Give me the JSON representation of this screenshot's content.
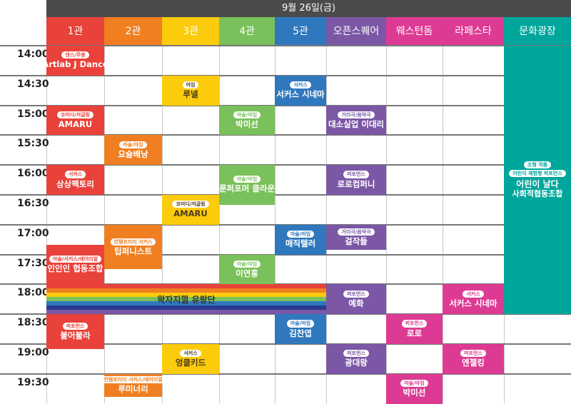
{
  "header": {
    "date": "9월 26일(금)"
  },
  "venues": [
    {
      "label": "1관",
      "color": "#e8423a"
    },
    {
      "label": "2관",
      "color": "#f07f22"
    },
    {
      "label": "3관",
      "color": "#fccb0b"
    },
    {
      "label": "4관",
      "color": "#7ac05b"
    },
    {
      "label": "5관",
      "color": "#2f78be"
    },
    {
      "label": "오픈스퀘어",
      "color": "#7b57a6"
    },
    {
      "label": "웨스턴돔",
      "color": "#dd3b93"
    },
    {
      "label": "라페스타",
      "color": "#dd3b93"
    },
    {
      "label": "문화광장",
      "color": "#00a69c"
    }
  ],
  "times": [
    "14:00",
    "14:30",
    "15:00",
    "15:30",
    "16:00",
    "16:30",
    "17:00",
    "17:30",
    "18:00",
    "18:30",
    "19:00",
    "19:30"
  ],
  "events": [
    {
      "venue": 0,
      "start": "14:00",
      "end": "14:30",
      "tag": "댄스/무용",
      "name": "Artlab J Dance"
    },
    {
      "venue": 2,
      "start": "14:30",
      "end": "15:00",
      "tag": "마임",
      "name": "루넬"
    },
    {
      "venue": 4,
      "start": "14:30",
      "end": "15:00",
      "tag": "서커스",
      "name": "서커스 시네마"
    },
    {
      "venue": 0,
      "start": "15:00",
      "end": "15:30",
      "tag": "코미디/저글링",
      "name": "AMARU"
    },
    {
      "venue": 3,
      "start": "15:00",
      "end": "15:30",
      "tag": "마술/마임",
      "name": "박미선"
    },
    {
      "venue": 5,
      "start": "15:00",
      "end": "15:30",
      "tag": "거리극/음악극",
      "name": "대소실업 이대리"
    },
    {
      "venue": 1,
      "start": "15:30",
      "end": "16:00",
      "tag": "마술/마임",
      "name": "요술배낭"
    },
    {
      "venue": 0,
      "start": "16:00",
      "end": "16:30",
      "tag": "서커스",
      "name": "상상팩토리"
    },
    {
      "venue": 3,
      "start": "16:00",
      "end": "16:40",
      "tag": "마술/마임",
      "name": "벌룬퍼포머 클라운진"
    },
    {
      "venue": 5,
      "start": "16:00",
      "end": "16:30",
      "tag": "퍼포먼스",
      "name": "로로컴퍼니"
    },
    {
      "venue": 2,
      "start": "16:30",
      "end": "17:00",
      "tag": "코미디/저글링",
      "name": "AMARU"
    },
    {
      "venue": 4,
      "start": "17:00",
      "end": "17:30",
      "tag": "마술/마임",
      "name": "매직텔러"
    },
    {
      "venue": 5,
      "start": "17:00",
      "end": "17:25",
      "tag": "거리극/음악극",
      "name": "걸작들"
    },
    {
      "venue": 1,
      "start": "17:00",
      "end": "17:45",
      "tag": "컨템포러리 서커스",
      "name": "팁퍼니스트"
    },
    {
      "venue": 0,
      "start": "17:20",
      "end": "18:00",
      "tag": "마술/서커스/에어리얼",
      "name": "인인인 협동조합"
    },
    {
      "venue": 3,
      "start": "17:30",
      "end": "18:00",
      "tag": "마술/마임",
      "name": "이연홍"
    },
    {
      "venue": 5,
      "start": "18:00",
      "end": "18:30",
      "tag": "퍼포먼스",
      "name": "예화"
    },
    {
      "venue": 7,
      "start": "18:00",
      "end": "18:30",
      "tag": "서커스",
      "name": "서커스 시네마"
    },
    {
      "venue": 0,
      "start": "18:30",
      "end": "19:05",
      "tag": "퍼포먼스",
      "name": "불어불라"
    },
    {
      "venue": 4,
      "start": "18:30",
      "end": "19:00",
      "tag": "마술/마임",
      "name": "김찬엽"
    },
    {
      "venue": 6,
      "start": "18:30",
      "end": "19:00",
      "tag": "퍼포먼스",
      "name": "로로"
    },
    {
      "venue": 2,
      "start": "19:00",
      "end": "19:30",
      "tag": "서커스",
      "name": "엉클키드"
    },
    {
      "venue": 5,
      "start": "19:00",
      "end": "19:30",
      "tag": "퍼포먼스",
      "name": "광대왕"
    },
    {
      "venue": 7,
      "start": "19:00",
      "end": "19:30",
      "tag": "퍼포먼스",
      "name": "엔젤킹"
    },
    {
      "venue": 1,
      "start": "19:30",
      "end": "19:53",
      "tag": "컨템포러리 서커스/에어리얼",
      "name": "루미너리"
    },
    {
      "venue": 6,
      "start": "19:30",
      "end": "20:00",
      "tag": "마술/마임",
      "name": "박미선"
    }
  ],
  "rainbow_event": {
    "start": "18:00",
    "end": "18:30",
    "name": "왁자지껄 유랑단",
    "stripes": [
      "#e8423a",
      "#f07f22",
      "#fccb0b",
      "#7ac05b",
      "#2f78be",
      "#2b3990",
      "#7b57a6"
    ]
  },
  "plaza_event": {
    "venue": 8,
    "start": "14:00",
    "end": "18:30",
    "tags": [
      "조형 작품",
      "어린이 체험형 퍼포먼스"
    ],
    "name": "어린이 날다",
    "name2": "사회적협동조합"
  }
}
